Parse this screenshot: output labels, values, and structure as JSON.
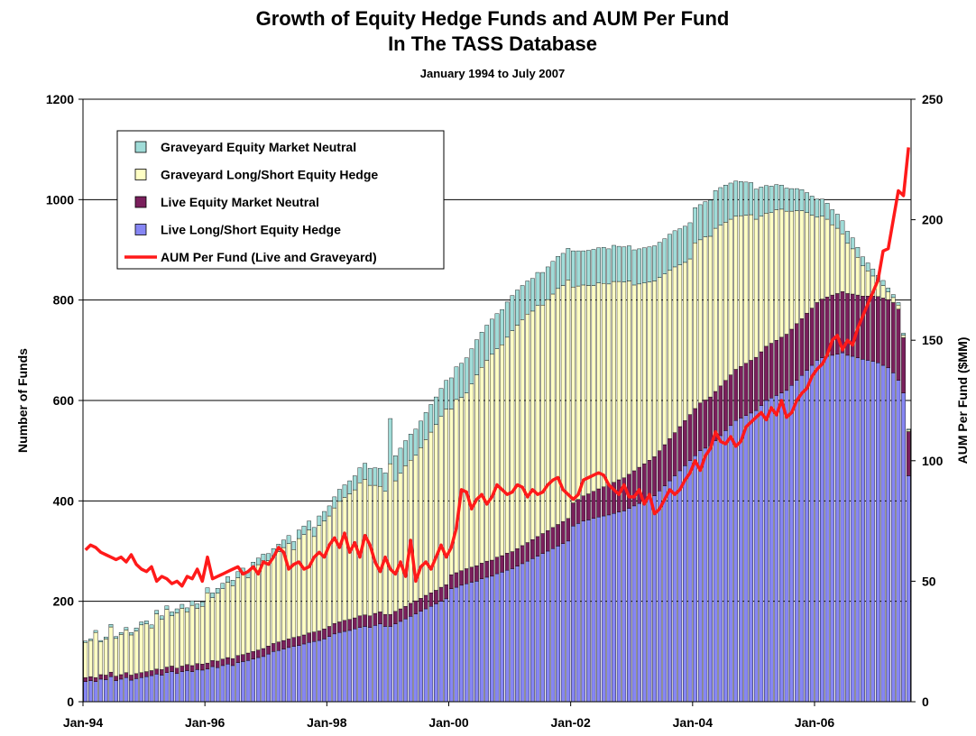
{
  "chart_data": {
    "type": "bar",
    "stacked": true,
    "title": [
      "Growth of Equity Hedge Funds and AUM Per Fund",
      "In The TASS Database"
    ],
    "subtitle": "January 1994 to July 2007",
    "y_label": "Number of Funds",
    "y2_label": "AUM Per Fund ($MM)",
    "ylim": [
      0,
      1200
    ],
    "yticks": [
      0,
      200,
      400,
      600,
      800,
      1000,
      1200
    ],
    "y2lim": [
      0,
      250
    ],
    "y2ticks": [
      0,
      50,
      100,
      150,
      200,
      250
    ],
    "grid": true,
    "legend": "upper left",
    "categories": [
      "Jan-94",
      null,
      null,
      null,
      null,
      null,
      null,
      null,
      null,
      null,
      null,
      null,
      null,
      null,
      null,
      null,
      null,
      null,
      null,
      null,
      null,
      null,
      null,
      null,
      "Jan-96",
      null,
      null,
      null,
      null,
      null,
      null,
      null,
      null,
      null,
      null,
      null,
      null,
      null,
      null,
      null,
      null,
      null,
      null,
      null,
      null,
      null,
      null,
      null,
      "Jan-98",
      null,
      null,
      null,
      null,
      null,
      null,
      null,
      null,
      null,
      null,
      null,
      null,
      null,
      null,
      null,
      null,
      null,
      null,
      null,
      null,
      null,
      null,
      null,
      "Jan-00",
      null,
      null,
      null,
      null,
      null,
      null,
      null,
      null,
      null,
      null,
      null,
      null,
      null,
      null,
      null,
      null,
      null,
      null,
      null,
      null,
      null,
      null,
      null,
      "Jan-02",
      null,
      null,
      null,
      null,
      null,
      null,
      null,
      null,
      null,
      null,
      null,
      null,
      null,
      null,
      null,
      null,
      null,
      null,
      null,
      null,
      null,
      null,
      null,
      "Jan-04",
      null,
      null,
      null,
      null,
      null,
      null,
      null,
      null,
      null,
      null,
      null,
      null,
      null,
      null,
      null,
      null,
      null,
      null,
      null,
      null,
      null,
      null,
      null,
      "Jan-06",
      null,
      null,
      null,
      null,
      null,
      null,
      null,
      null,
      null,
      null,
      null,
      null,
      null,
      null,
      null,
      null,
      null,
      null
    ],
    "series": [
      {
        "name": "Graveyard Equity Market Neutral",
        "type": "bar",
        "color": "#a0dcd8",
        "values": [
          3,
          3,
          4,
          3,
          4,
          5,
          4,
          4,
          5,
          5,
          6,
          6,
          6,
          6,
          7,
          7,
          7,
          8,
          8,
          8,
          8,
          9,
          9,
          9,
          10,
          10,
          10,
          11,
          11,
          11,
          12,
          12,
          12,
          13,
          13,
          13,
          14,
          14,
          15,
          15,
          16,
          16,
          17,
          17,
          18,
          18,
          19,
          19,
          20,
          22,
          24,
          25,
          26,
          28,
          30,
          32,
          34,
          35,
          36,
          37,
          90,
          50,
          50,
          50,
          52,
          52,
          53,
          54,
          55,
          55,
          56,
          57,
          62,
          65,
          68,
          70,
          70,
          70,
          70,
          70,
          70,
          70,
          70,
          70,
          70,
          70,
          68,
          66,
          65,
          66,
          65,
          65,
          65,
          64,
          64,
          63,
          72,
          70,
          68,
          70,
          72,
          70,
          72,
          70,
          72,
          70,
          70,
          70,
          70,
          70,
          70,
          70,
          70,
          70,
          70,
          72,
          72,
          72,
          72,
          72,
          70,
          70,
          70,
          72,
          75,
          75,
          74,
          72,
          70,
          68,
          66,
          64,
          60,
          58,
          55,
          53,
          50,
          48,
          46,
          45,
          44,
          42,
          40,
          38,
          36,
          34,
          32,
          30,
          28,
          26,
          24,
          22,
          20,
          18,
          16,
          14,
          12,
          10,
          8,
          6,
          5,
          4,
          2
        ]
      },
      {
        "name": "Graveyard Long/Short Equity Hedge",
        "type": "bar",
        "color": "#ffffc4",
        "values": [
          70,
          72,
          90,
          65,
          72,
          90,
          75,
          80,
          85,
          80,
          85,
          95,
          95,
          85,
          110,
          100,
          115,
          100,
          110,
          115,
          105,
          120,
          110,
          115,
          140,
          125,
          135,
          140,
          150,
          145,
          155,
          160,
          150,
          165,
          170,
          175,
          170,
          175,
          180,
          185,
          190,
          175,
          195,
          200,
          205,
          190,
          210,
          215,
          220,
          230,
          240,
          245,
          250,
          255,
          265,
          270,
          260,
          255,
          250,
          245,
          300,
          260,
          270,
          280,
          285,
          290,
          300,
          310,
          320,
          330,
          340,
          350,
          330,
          345,
          345,
          350,
          365,
          380,
          390,
          400,
          410,
          415,
          420,
          430,
          440,
          445,
          450,
          455,
          455,
          460,
          455,
          460,
          465,
          470,
          470,
          475,
          430,
          425,
          420,
          415,
          410,
          410,
          405,
          400,
          400,
          395,
          390,
          385,
          370,
          365,
          360,
          355,
          350,
          345,
          340,
          335,
          330,
          322,
          315,
          310,
          330,
          325,
          325,
          320,
          325,
          320,
          315,
          310,
          305,
          300,
          295,
          290,
          275,
          270,
          265,
          260,
          260,
          255,
          245,
          235,
          225,
          215,
          200,
          185,
          170,
          165,
          155,
          140,
          130,
          115,
          100,
          90,
          75,
          60,
          50,
          40,
          30,
          25,
          15,
          10,
          8,
          5,
          3
        ]
      },
      {
        "name": "Live Equity Market Neutral",
        "type": "bar",
        "color": "#7a1f5c",
        "values": [
          8,
          8,
          8,
          9,
          9,
          9,
          9,
          9,
          10,
          10,
          10,
          10,
          10,
          10,
          10,
          11,
          11,
          11,
          11,
          11,
          12,
          12,
          12,
          12,
          12,
          12,
          13,
          13,
          13,
          14,
          14,
          14,
          15,
          15,
          15,
          16,
          16,
          16,
          17,
          17,
          17,
          18,
          18,
          18,
          19,
          19,
          19,
          20,
          20,
          21,
          21,
          22,
          22,
          22,
          23,
          23,
          23,
          24,
          24,
          24,
          24,
          25,
          25,
          25,
          26,
          26,
          26,
          27,
          27,
          27,
          28,
          28,
          28,
          29,
          29,
          30,
          30,
          31,
          31,
          32,
          32,
          33,
          33,
          34,
          34,
          35,
          36,
          37,
          38,
          39,
          40,
          41,
          42,
          43,
          44,
          45,
          46,
          48,
          50,
          52,
          54,
          56,
          58,
          60,
          62,
          64,
          66,
          68,
          70,
          72,
          74,
          76,
          78,
          80,
          82,
          84,
          86,
          88,
          90,
          92,
          94,
          95,
          96,
          97,
          98,
          99,
          100,
          101,
          102,
          103,
          104,
          105,
          106,
          107,
          108,
          109,
          110,
          111,
          112,
          112,
          113,
          113,
          114,
          114,
          115,
          117,
          118,
          120,
          121,
          122,
          123,
          124,
          125,
          126,
          128,
          130,
          132,
          134,
          136,
          140,
          142,
          110,
          88
        ]
      },
      {
        "name": "Live Long/Short Equity Hedge",
        "type": "bar",
        "color": "#8686f4",
        "values": [
          40,
          42,
          40,
          45,
          44,
          50,
          42,
          45,
          48,
          43,
          46,
          48,
          50,
          52,
          55,
          53,
          58,
          60,
          56,
          60,
          62,
          60,
          64,
          63,
          65,
          70,
          68,
          72,
          75,
          72,
          78,
          80,
          82,
          85,
          88,
          90,
          95,
          100,
          102,
          105,
          108,
          110,
          112,
          115,
          118,
          120,
          122,
          125,
          130,
          135,
          138,
          140,
          142,
          145,
          148,
          150,
          148,
          152,
          155,
          150,
          150,
          155,
          160,
          165,
          170,
          175,
          180,
          185,
          190,
          195,
          200,
          205,
          225,
          228,
          232,
          235,
          238,
          240,
          245,
          248,
          250,
          255,
          258,
          262,
          265,
          270,
          275,
          280,
          285,
          290,
          295,
          300,
          305,
          310,
          315,
          320,
          350,
          355,
          360,
          362,
          365,
          368,
          370,
          372,
          375,
          378,
          380,
          385,
          390,
          395,
          400,
          405,
          410,
          420,
          430,
          440,
          450,
          460,
          470,
          480,
          490,
          500,
          505,
          510,
          520,
          530,
          540,
          550,
          560,
          565,
          570,
          575,
          580,
          590,
          600,
          605,
          610,
          615,
          620,
          630,
          640,
          650,
          660,
          670,
          680,
          685,
          688,
          690,
          692,
          695,
          690,
          688,
          685,
          682,
          680,
          678,
          675,
          670,
          665,
          655,
          640,
          615,
          450
        ]
      },
      {
        "name": "AUM Per Fund (Live and Graveyard)",
        "type": "line",
        "axis": "y2",
        "color": "#ff1a1a",
        "values": [
          63,
          65,
          64,
          62,
          61,
          60,
          59,
          60,
          58,
          61,
          57,
          55,
          54,
          56,
          50,
          52,
          51,
          49,
          50,
          48,
          52,
          51,
          55,
          50,
          60,
          51,
          52,
          53,
          54,
          55,
          56,
          53,
          54,
          56,
          53,
          58,
          57,
          60,
          64,
          62,
          55,
          57,
          58,
          55,
          56,
          60,
          62,
          60,
          65,
          68,
          64,
          70,
          62,
          66,
          60,
          69,
          65,
          58,
          54,
          60,
          55,
          53,
          58,
          52,
          67,
          50,
          56,
          58,
          55,
          60,
          65,
          60,
          64,
          72,
          88,
          87,
          80,
          84,
          86,
          82,
          85,
          90,
          88,
          86,
          87,
          90,
          89,
          85,
          88,
          86,
          87,
          90,
          92,
          93,
          88,
          86,
          84,
          86,
          92,
          93,
          94,
          95,
          94,
          90,
          88,
          86,
          90,
          85,
          85,
          88,
          82,
          86,
          78,
          80,
          84,
          88,
          86,
          88,
          92,
          95,
          100,
          96,
          102,
          105,
          112,
          108,
          107,
          110,
          106,
          108,
          114,
          116,
          118,
          120,
          117,
          122,
          119,
          125,
          118,
          120,
          125,
          128,
          130,
          135,
          138,
          140,
          144,
          150,
          152,
          146,
          150,
          148,
          155,
          160,
          165,
          170,
          175,
          187,
          188,
          200,
          212,
          210,
          230
        ]
      }
    ]
  }
}
